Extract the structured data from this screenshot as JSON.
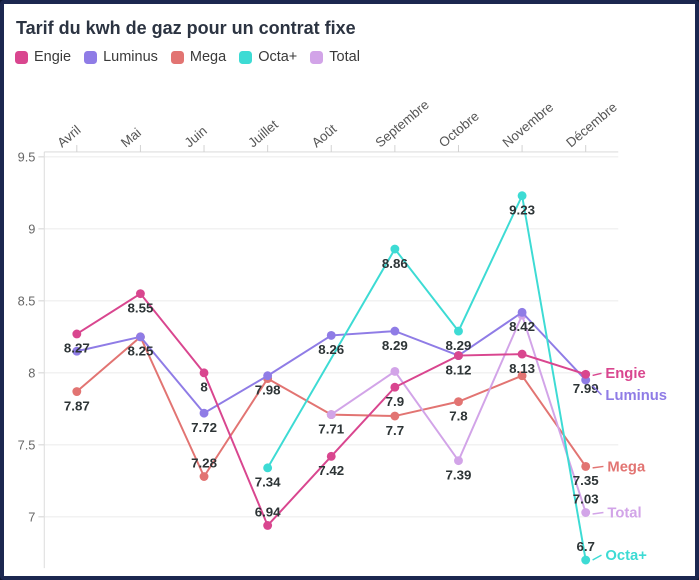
{
  "header": {
    "title": "Tarif du kwh de gaz pour un contrat fixe"
  },
  "legend": [
    {
      "label": "Engie",
      "color": "#d9468f"
    },
    {
      "label": "Luminus",
      "color": "#8f7ce6"
    },
    {
      "label": "Mega",
      "color": "#e27472"
    },
    {
      "label": "Octa+",
      "color": "#3ddbd4"
    },
    {
      "label": "Total",
      "color": "#d2a4e8"
    }
  ],
  "chart_data": {
    "type": "line",
    "title": "Tarif du kwh de gaz pour un contrat fixe",
    "categories": [
      "Avril",
      "Mai",
      "Juin",
      "Juillet",
      "Août",
      "Septembre",
      "Octobre",
      "Novembre",
      "Décembre"
    ],
    "x_axis_position": "top",
    "x_label_rotation_deg": -40,
    "y_axis": {
      "ticks": [
        9.5,
        9,
        8.5,
        8,
        7.5,
        7
      ],
      "range": [
        6.55,
        9.6
      ]
    },
    "grid": true,
    "legend_position": "top-left",
    "series": [
      {
        "name": "Engie",
        "color": "#d9468f",
        "values": [
          8.27,
          8.55,
          8,
          6.94,
          7.42,
          7.9,
          8.12,
          8.13,
          7.99
        ],
        "labels": [
          "8.27",
          "8.55",
          "8",
          "6.94",
          "7.42",
          "7.9",
          "8.12",
          "8.13",
          "7.99"
        ],
        "label_pos": [
          "b",
          "b",
          "b",
          "a",
          "b",
          "b",
          "b",
          "b",
          "b"
        ],
        "end_label": {
          "dx": 20,
          "dy": 4
        }
      },
      {
        "name": "Luminus",
        "color": "#8f7ce6",
        "values": [
          8.15,
          8.25,
          7.72,
          7.98,
          8.26,
          8.29,
          8.12,
          8.42,
          7.95
        ],
        "labels": [
          "",
          "",
          "7.72",
          "7.98",
          "8.26",
          "8.29",
          "",
          "8.42",
          ""
        ],
        "label_pos": [
          "",
          "",
          "b",
          "b",
          "b",
          "b",
          "",
          "b",
          ""
        ],
        "end_label": {
          "dx": 20,
          "dy": 20
        }
      },
      {
        "name": "Mega",
        "color": "#e27472",
        "values": [
          7.87,
          8.25,
          7.28,
          7.96,
          7.71,
          7.7,
          7.8,
          7.98,
          7.35
        ],
        "labels": [
          "7.87",
          "8.25",
          "7.28",
          "",
          "",
          "7.7",
          "7.8",
          "",
          "7.35"
        ],
        "label_pos": [
          "b",
          "b",
          "a",
          "",
          "",
          "b",
          "b",
          "",
          "b"
        ],
        "end_label": {
          "dx": 22,
          "dy": 5
        }
      },
      {
        "name": "Octa+",
        "color": "#3ddbd4",
        "values": [
          null,
          null,
          null,
          7.34,
          null,
          8.86,
          8.29,
          9.23,
          6.7
        ],
        "labels": [
          "",
          "",
          "",
          "7.34",
          "",
          "8.86",
          "8.29",
          "9.23",
          "6.7"
        ],
        "label_pos": [
          "",
          "",
          "",
          "b",
          "",
          "b",
          "b",
          "b",
          "a"
        ],
        "end_label": {
          "dx": 20,
          "dy": 0
        }
      },
      {
        "name": "Total",
        "color": "#d2a4e8",
        "values": [
          null,
          null,
          null,
          null,
          7.71,
          8.01,
          7.39,
          8.4,
          7.03
        ],
        "labels": [
          "",
          "",
          "",
          "",
          "7.71",
          "",
          "7.39",
          "",
          "7.03"
        ],
        "label_pos": [
          "",
          "",
          "",
          "",
          "b",
          "",
          "b",
          "",
          "a"
        ],
        "end_label": {
          "dx": 22,
          "dy": 5
        }
      }
    ],
    "draw_order": [
      "Mega",
      "Total",
      "Luminus",
      "Octa+",
      "Engie"
    ]
  }
}
